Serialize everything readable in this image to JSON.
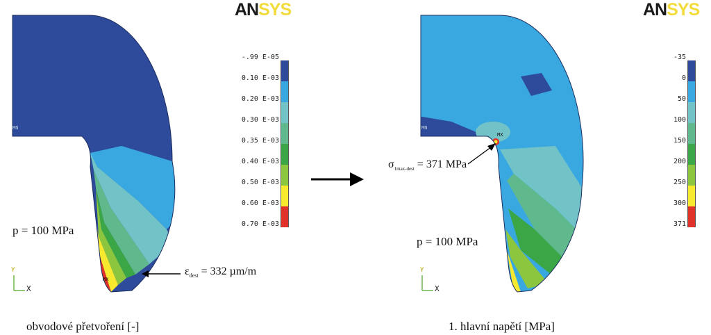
{
  "logo": {
    "part1": "AN",
    "part2": "SYS"
  },
  "left": {
    "legend": [
      "-.99 E-05",
      "0.10 E-03",
      "0.20 E-03",
      "0.30 E-03",
      "0.35 E-03",
      "0.40 E-03",
      "0.50 E-03",
      "0.60 E-03",
      "0.70 E-03"
    ],
    "legend_colors": [
      "#2e4a9a",
      "#3aa8e0",
      "#72c3c8",
      "#60b98c",
      "#3aa646",
      "#8cc63e",
      "#f7ea2e",
      "#e03228"
    ],
    "pressure": "p = 100 MPa",
    "annotation_symbol": "ε",
    "annotation_sub": "dest",
    "annotation_value": " = 332 µm/m",
    "mn": "MN",
    "mx": "MX",
    "axis_x": "X",
    "axis_y": "Y",
    "caption": "obvodové přetvoření [-]"
  },
  "right": {
    "legend": [
      "-35",
      "0",
      "50",
      "100",
      "150",
      "200",
      "250",
      "300",
      "371"
    ],
    "legend_colors": [
      "#2e4a9a",
      "#3aa8e0",
      "#72c3c8",
      "#60b98c",
      "#3aa646",
      "#8cc63e",
      "#f7ea2e",
      "#e03228"
    ],
    "pressure": "p = 100 MPa",
    "annotation_symbol": "σ",
    "annotation_sub": "1max-dest",
    "annotation_value": " = 371 MPa",
    "mn": "MN",
    "mx": "MX",
    "axis_x": "X",
    "axis_y": "Y",
    "caption": "1. hlavní napětí [MPa]"
  }
}
